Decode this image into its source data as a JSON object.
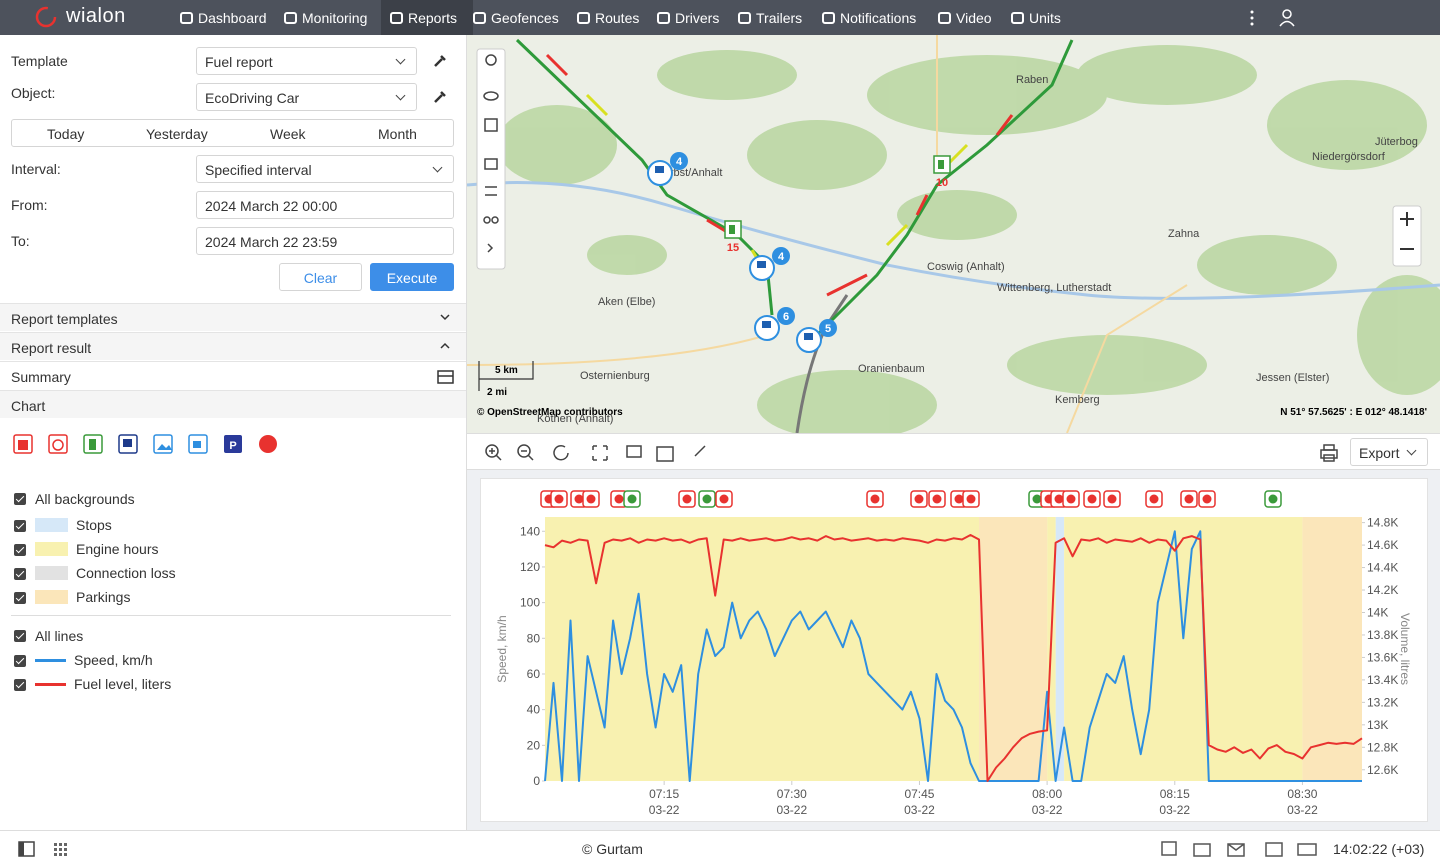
{
  "nav": {
    "logo": "wialon",
    "items": [
      "Dashboard",
      "Monitoring",
      "Reports",
      "Geofences",
      "Routes",
      "Drivers",
      "Trailers",
      "Notifications",
      "Video",
      "Units"
    ],
    "active_index": 2
  },
  "form": {
    "template_label": "Template",
    "template": "Fuel report",
    "object_label": "Object:",
    "object": "EcoDriving Car",
    "quick_ranges": [
      "Today",
      "Yesterday",
      "Week",
      "Month"
    ],
    "interval_label": "Interval:",
    "interval": "Specified interval",
    "from_label": "From:",
    "from": "2024 March 22 00:00",
    "to_label": "To:",
    "to": "2024 March 22 23:59",
    "clear": "Clear",
    "execute": "Execute"
  },
  "sections": [
    "Report templates",
    "Report result",
    "Summary",
    "Chart"
  ],
  "chart_options": {
    "all_backgrounds": "All backgrounds",
    "all_lines": "All lines"
  },
  "map": {
    "places": [
      "Raben",
      "Niedergörsdorf",
      "Jüterbog",
      "Zahna",
      "Coswig (Anhalt)",
      "Wittenberg, Lutherstadt",
      "Aken (Elbe)",
      "Osternienburg",
      "Oranienbaum",
      "Jessen (Elster)",
      "Kemberg",
      "Köthen (Anhalt)",
      "Zerbst/Anhalt"
    ],
    "markers": [
      4,
      4,
      6,
      5
    ],
    "fuel_markers": [
      15,
      10
    ],
    "scale_km": "5 km",
    "scale_mi": "2 mi",
    "attribution": "© OpenStreetMap contributors",
    "coordinates": "N 51° 57.5625' : E 012° 48.1418'"
  },
  "chart_toolbar": {
    "export": "Export"
  },
  "footer": {
    "copyright": "© Gurtam",
    "time": "14:02:22 (+03)"
  },
  "chart_data": {
    "type": "line",
    "ylabel": "Speed, km/h",
    "y2label": "Volume, litres",
    "x": [
      "07:01",
      "07:02",
      "07:03",
      "07:04",
      "07:05",
      "07:06",
      "07:07",
      "07:08",
      "07:09",
      "07:10",
      "07:11",
      "07:12",
      "07:13",
      "07:14",
      "07:15",
      "07:16",
      "07:17",
      "07:18",
      "07:19",
      "07:20",
      "07:21",
      "07:22",
      "07:23",
      "07:24",
      "07:25",
      "07:26",
      "07:27",
      "07:28",
      "07:29",
      "07:30",
      "07:31",
      "07:32",
      "07:33",
      "07:34",
      "07:35",
      "07:36",
      "07:37",
      "07:38",
      "07:39",
      "07:40",
      "07:41",
      "07:42",
      "07:43",
      "07:44",
      "07:45",
      "07:46",
      "07:47",
      "07:48",
      "07:49",
      "07:50",
      "07:51",
      "07:52",
      "07:53",
      "07:54",
      "07:55",
      "07:56",
      "07:57",
      "07:58",
      "07:59",
      "08:00",
      "08:01",
      "08:02",
      "08:03",
      "08:04",
      "08:05",
      "08:06",
      "08:07",
      "08:08",
      "08:09",
      "08:10",
      "08:11",
      "08:12",
      "08:13",
      "08:14",
      "08:15",
      "08:16",
      "08:17",
      "08:18",
      "08:19",
      "08:20",
      "08:21",
      "08:22",
      "08:23",
      "08:24",
      "08:25",
      "08:26",
      "08:27",
      "08:28",
      "08:29",
      "08:30",
      "08:31",
      "08:32",
      "08:33",
      "08:34",
      "08:35",
      "08:36",
      "08:37"
    ],
    "series": [
      {
        "name": "Speed, km/h",
        "color": "#2e8fe0",
        "values": [
          0,
          55,
          0,
          90,
          0,
          70,
          50,
          30,
          90,
          60,
          80,
          105,
          60,
          30,
          60,
          50,
          65,
          0,
          60,
          85,
          70,
          75,
          100,
          80,
          90,
          95,
          85,
          70,
          80,
          90,
          95,
          85,
          90,
          95,
          85,
          75,
          90,
          80,
          60,
          55,
          50,
          45,
          40,
          50,
          35,
          0,
          60,
          45,
          40,
          30,
          10,
          0,
          0,
          0,
          0,
          0,
          0,
          0,
          0,
          50,
          0,
          30,
          0,
          0,
          30,
          45,
          60,
          55,
          70,
          40,
          15,
          40,
          100,
          120,
          140,
          80,
          130,
          140,
          0,
          0,
          0,
          0,
          0,
          0,
          0,
          0,
          0,
          0,
          0,
          0,
          0,
          0,
          0,
          0,
          0,
          0,
          0
        ]
      },
      {
        "name": "Fuel level, liters",
        "color": "#e8322f",
        "axis": "y2",
        "values": [
          14600,
          14580,
          14640,
          14620,
          14650,
          14640,
          14260,
          14620,
          14650,
          14640,
          14660,
          14620,
          14650,
          14640,
          14660,
          14640,
          14650,
          14620,
          14650,
          14660,
          14150,
          14650,
          14640,
          14660,
          14640,
          14650,
          14660,
          14640,
          14650,
          14670,
          14650,
          14660,
          14640,
          14680,
          14650,
          14660,
          14640,
          14650,
          14660,
          14640,
          14650,
          14640,
          14660,
          14650,
          14640,
          14620,
          14650,
          14640,
          14660,
          14650,
          14690,
          14650,
          12500,
          12620,
          12700,
          12800,
          12880,
          12920,
          12940,
          12950,
          14620,
          14660,
          14500,
          14650,
          14640,
          14660,
          14620,
          14650,
          14640,
          14630,
          14660,
          14620,
          14650,
          14640,
          14550,
          14660,
          14680,
          14650,
          12820,
          12780,
          12760,
          12800,
          12750,
          12780,
          12700,
          12790,
          12820,
          12760,
          12740,
          12700,
          12800,
          12820,
          12840,
          12830,
          12840,
          12830,
          12880
        ]
      }
    ],
    "backgrounds": [
      {
        "name": "Stops",
        "color": "#d6e8f8",
        "intervals": [
          [
            "08:01",
            "08:02"
          ]
        ]
      },
      {
        "name": "Engine hours",
        "color": "#f8f1b0",
        "intervals": [
          [
            "07:01",
            "07:52"
          ],
          [
            "08:00",
            "08:01"
          ],
          [
            "08:02",
            "08:30"
          ]
        ]
      },
      {
        "name": "Connection loss",
        "color": "#e2e2e2",
        "intervals": []
      },
      {
        "name": "Parkings",
        "color": "#fbe6ba",
        "intervals": [
          [
            "07:52",
            "08:00"
          ],
          [
            "08:30",
            "08:37"
          ]
        ]
      }
    ],
    "xlim": [
      "07:01",
      "08:37"
    ],
    "xticks": [
      {
        "value": "07:15",
        "label": "07:15",
        "date": "03-22"
      },
      {
        "value": "07:30",
        "label": "07:30",
        "date": "03-22"
      },
      {
        "value": "07:45",
        "label": "07:45",
        "date": "03-22"
      },
      {
        "value": "08:00",
        "label": "08:00",
        "date": "03-22"
      },
      {
        "value": "08:15",
        "label": "08:15",
        "date": "03-22"
      },
      {
        "value": "08:30",
        "label": "08:30",
        "date": "03-22"
      }
    ],
    "ylim": [
      0,
      148
    ],
    "yticks": [
      0,
      20,
      40,
      60,
      80,
      100,
      120,
      140
    ],
    "y2lim": [
      12500,
      14850
    ],
    "y2ticks": [
      {
        "value": 12600,
        "label": "12.6K"
      },
      {
        "value": 12800,
        "label": "12.8K"
      },
      {
        "value": 13000,
        "label": "13K"
      },
      {
        "value": 13200,
        "label": "13.2K"
      },
      {
        "value": 13400,
        "label": "13.4K"
      },
      {
        "value": 13600,
        "label": "13.6K"
      },
      {
        "value": 13800,
        "label": "13.8K"
      },
      {
        "value": 14000,
        "label": "14K"
      },
      {
        "value": 14200,
        "label": "14.2K"
      },
      {
        "value": 14400,
        "label": "14.4K"
      },
      {
        "value": 14600,
        "label": "14.6K"
      },
      {
        "value": 14800,
        "label": "14.8K"
      }
    ]
  }
}
